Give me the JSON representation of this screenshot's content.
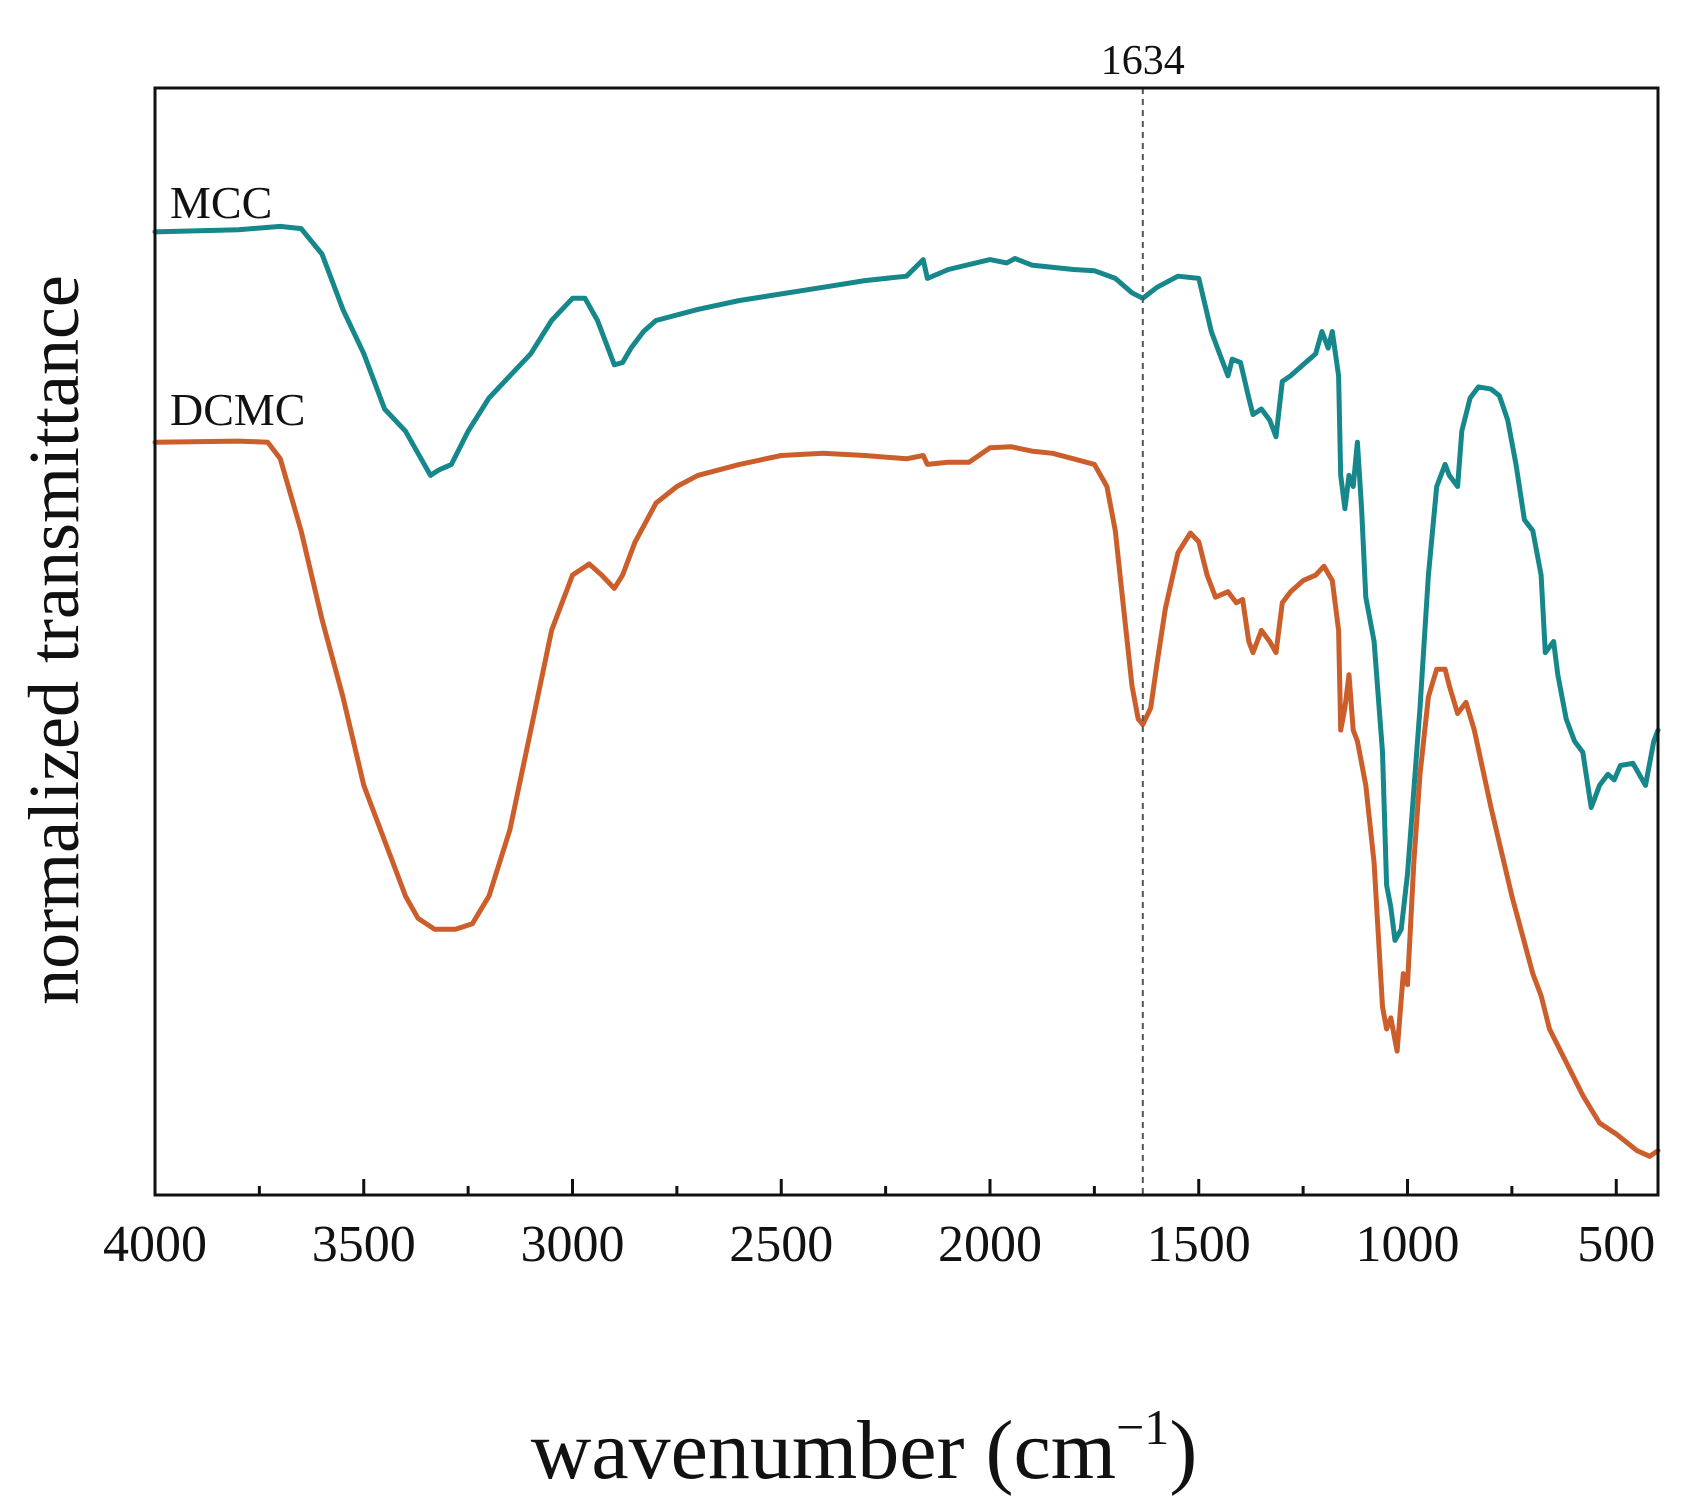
{
  "chart_data": {
    "type": "line",
    "title": "",
    "xlabel": "wavenumber (cm",
    "xlabel_sup": "−1",
    "xlabel_close": ")",
    "ylabel": "normalized transmittance",
    "xlim": [
      4000,
      400
    ],
    "x_reversed": true,
    "ylim": [
      0,
      1
    ],
    "y_ticks_shown": false,
    "grid": false,
    "x_ticks": [
      4000,
      3500,
      3000,
      2500,
      2000,
      1500,
      1000,
      500
    ],
    "x_tick_labels": [
      "4000",
      "3500",
      "3000",
      "2500",
      "2000",
      "1500",
      "1000",
      "500"
    ],
    "x_minor_step": 250,
    "annotations": [
      {
        "x": 1634,
        "label": "1634",
        "style": "dashed-vertical"
      }
    ],
    "series": [
      {
        "name": "MCC",
        "color": "#16878a",
        "points": [
          [
            4000,
            0.87
          ],
          [
            3800,
            0.872
          ],
          [
            3700,
            0.875
          ],
          [
            3650,
            0.873
          ],
          [
            3600,
            0.85
          ],
          [
            3550,
            0.8
          ],
          [
            3500,
            0.76
          ],
          [
            3450,
            0.71
          ],
          [
            3400,
            0.69
          ],
          [
            3370,
            0.67
          ],
          [
            3340,
            0.65
          ],
          [
            3320,
            0.655
          ],
          [
            3290,
            0.66
          ],
          [
            3250,
            0.69
          ],
          [
            3200,
            0.72
          ],
          [
            3100,
            0.76
          ],
          [
            3050,
            0.79
          ],
          [
            3000,
            0.81
          ],
          [
            2970,
            0.81
          ],
          [
            2940,
            0.79
          ],
          [
            2920,
            0.77
          ],
          [
            2900,
            0.75
          ],
          [
            2880,
            0.752
          ],
          [
            2860,
            0.765
          ],
          [
            2830,
            0.78
          ],
          [
            2800,
            0.79
          ],
          [
            2700,
            0.8
          ],
          [
            2600,
            0.808
          ],
          [
            2400,
            0.82
          ],
          [
            2300,
            0.826
          ],
          [
            2200,
            0.83
          ],
          [
            2160,
            0.845
          ],
          [
            2150,
            0.828
          ],
          [
            2100,
            0.836
          ],
          [
            2000,
            0.845
          ],
          [
            1960,
            0.842
          ],
          [
            1940,
            0.846
          ],
          [
            1900,
            0.84
          ],
          [
            1800,
            0.836
          ],
          [
            1750,
            0.835
          ],
          [
            1700,
            0.828
          ],
          [
            1660,
            0.815
          ],
          [
            1634,
            0.81
          ],
          [
            1600,
            0.82
          ],
          [
            1550,
            0.83
          ],
          [
            1500,
            0.828
          ],
          [
            1470,
            0.78
          ],
          [
            1450,
            0.76
          ],
          [
            1430,
            0.74
          ],
          [
            1420,
            0.755
          ],
          [
            1400,
            0.752
          ],
          [
            1380,
            0.72
          ],
          [
            1370,
            0.705
          ],
          [
            1350,
            0.71
          ],
          [
            1330,
            0.7
          ],
          [
            1315,
            0.685
          ],
          [
            1300,
            0.735
          ],
          [
            1280,
            0.74
          ],
          [
            1250,
            0.75
          ],
          [
            1220,
            0.76
          ],
          [
            1205,
            0.78
          ],
          [
            1190,
            0.765
          ],
          [
            1180,
            0.78
          ],
          [
            1165,
            0.74
          ],
          [
            1160,
            0.65
          ],
          [
            1150,
            0.62
          ],
          [
            1140,
            0.65
          ],
          [
            1130,
            0.64
          ],
          [
            1120,
            0.68
          ],
          [
            1110,
            0.62
          ],
          [
            1100,
            0.54
          ],
          [
            1080,
            0.5
          ],
          [
            1060,
            0.4
          ],
          [
            1050,
            0.28
          ],
          [
            1040,
            0.26
          ],
          [
            1030,
            0.23
          ],
          [
            1015,
            0.24
          ],
          [
            1000,
            0.29
          ],
          [
            990,
            0.34
          ],
          [
            970,
            0.44
          ],
          [
            950,
            0.56
          ],
          [
            930,
            0.64
          ],
          [
            910,
            0.66
          ],
          [
            900,
            0.65
          ],
          [
            880,
            0.64
          ],
          [
            870,
            0.69
          ],
          [
            850,
            0.72
          ],
          [
            830,
            0.73
          ],
          [
            800,
            0.728
          ],
          [
            780,
            0.722
          ],
          [
            760,
            0.7
          ],
          [
            740,
            0.66
          ],
          [
            720,
            0.61
          ],
          [
            700,
            0.6
          ],
          [
            680,
            0.56
          ],
          [
            670,
            0.49
          ],
          [
            650,
            0.5
          ],
          [
            640,
            0.47
          ],
          [
            620,
            0.43
          ],
          [
            600,
            0.41
          ],
          [
            580,
            0.4
          ],
          [
            560,
            0.35
          ],
          [
            550,
            0.36
          ],
          [
            540,
            0.37
          ],
          [
            520,
            0.38
          ],
          [
            505,
            0.375
          ],
          [
            490,
            0.388
          ],
          [
            460,
            0.39
          ],
          [
            430,
            0.37
          ],
          [
            410,
            0.41
          ],
          [
            400,
            0.42
          ]
        ]
      },
      {
        "name": "DCMC",
        "color": "#cb5e2a",
        "points": [
          [
            4000,
            0.68
          ],
          [
            3800,
            0.681
          ],
          [
            3730,
            0.68
          ],
          [
            3700,
            0.665
          ],
          [
            3650,
            0.6
          ],
          [
            3600,
            0.52
          ],
          [
            3550,
            0.45
          ],
          [
            3500,
            0.37
          ],
          [
            3470,
            0.34
          ],
          [
            3430,
            0.3
          ],
          [
            3400,
            0.27
          ],
          [
            3370,
            0.25
          ],
          [
            3330,
            0.24
          ],
          [
            3280,
            0.24
          ],
          [
            3240,
            0.245
          ],
          [
            3200,
            0.27
          ],
          [
            3150,
            0.33
          ],
          [
            3100,
            0.42
          ],
          [
            3050,
            0.51
          ],
          [
            3000,
            0.56
          ],
          [
            2960,
            0.57
          ],
          [
            2930,
            0.56
          ],
          [
            2900,
            0.548
          ],
          [
            2880,
            0.56
          ],
          [
            2850,
            0.59
          ],
          [
            2800,
            0.625
          ],
          [
            2750,
            0.64
          ],
          [
            2700,
            0.65
          ],
          [
            2600,
            0.66
          ],
          [
            2500,
            0.668
          ],
          [
            2400,
            0.67
          ],
          [
            2300,
            0.668
          ],
          [
            2200,
            0.665
          ],
          [
            2160,
            0.668
          ],
          [
            2150,
            0.66
          ],
          [
            2100,
            0.662
          ],
          [
            2050,
            0.662
          ],
          [
            2000,
            0.675
          ],
          [
            1950,
            0.676
          ],
          [
            1900,
            0.672
          ],
          [
            1850,
            0.67
          ],
          [
            1800,
            0.665
          ],
          [
            1750,
            0.66
          ],
          [
            1720,
            0.64
          ],
          [
            1700,
            0.6
          ],
          [
            1680,
            0.53
          ],
          [
            1660,
            0.46
          ],
          [
            1645,
            0.43
          ],
          [
            1634,
            0.425
          ],
          [
            1615,
            0.44
          ],
          [
            1600,
            0.48
          ],
          [
            1580,
            0.53
          ],
          [
            1550,
            0.58
          ],
          [
            1520,
            0.598
          ],
          [
            1500,
            0.59
          ],
          [
            1480,
            0.56
          ],
          [
            1460,
            0.54
          ],
          [
            1430,
            0.545
          ],
          [
            1410,
            0.535
          ],
          [
            1395,
            0.538
          ],
          [
            1380,
            0.5
          ],
          [
            1370,
            0.49
          ],
          [
            1350,
            0.51
          ],
          [
            1330,
            0.5
          ],
          [
            1315,
            0.49
          ],
          [
            1300,
            0.535
          ],
          [
            1280,
            0.545
          ],
          [
            1250,
            0.555
          ],
          [
            1220,
            0.56
          ],
          [
            1200,
            0.568
          ],
          [
            1180,
            0.555
          ],
          [
            1165,
            0.51
          ],
          [
            1160,
            0.42
          ],
          [
            1150,
            0.44
          ],
          [
            1140,
            0.47
          ],
          [
            1130,
            0.42
          ],
          [
            1120,
            0.41
          ],
          [
            1100,
            0.37
          ],
          [
            1080,
            0.3
          ],
          [
            1060,
            0.17
          ],
          [
            1050,
            0.15
          ],
          [
            1040,
            0.16
          ],
          [
            1025,
            0.13
          ],
          [
            1010,
            0.2
          ],
          [
            1000,
            0.19
          ],
          [
            985,
            0.3
          ],
          [
            970,
            0.38
          ],
          [
            950,
            0.45
          ],
          [
            930,
            0.475
          ],
          [
            910,
            0.475
          ],
          [
            900,
            0.46
          ],
          [
            880,
            0.435
          ],
          [
            860,
            0.445
          ],
          [
            840,
            0.42
          ],
          [
            800,
            0.35
          ],
          [
            750,
            0.27
          ],
          [
            700,
            0.2
          ],
          [
            680,
            0.18
          ],
          [
            660,
            0.15
          ],
          [
            620,
            0.12
          ],
          [
            580,
            0.09
          ],
          [
            540,
            0.065
          ],
          [
            500,
            0.055
          ],
          [
            450,
            0.04
          ],
          [
            420,
            0.035
          ],
          [
            400,
            0.04
          ]
        ]
      }
    ]
  }
}
